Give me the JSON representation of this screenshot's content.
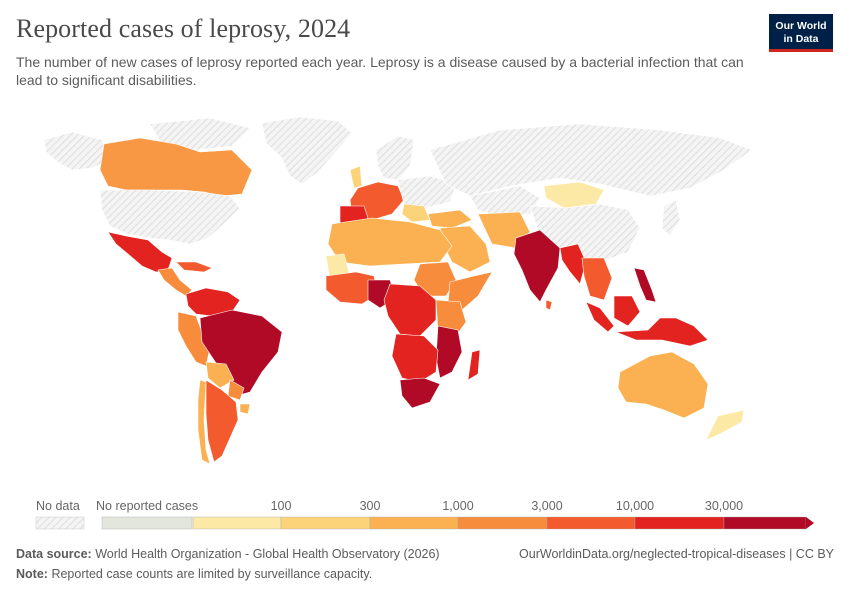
{
  "title": "Reported cases of leprosy, 2024",
  "subtitle": "The number of new cases of leprosy reported each year. Leprosy is a disease caused by a bacterial infection that can lead to significant disabilities.",
  "logo": {
    "line1": "Our World",
    "line2": "in Data"
  },
  "legend": {
    "no_data_label": "No data",
    "no_cases_label": "No reported cases",
    "ticks": [
      "100",
      "300",
      "1,000",
      "3,000",
      "10,000",
      "30,000"
    ],
    "colors": {
      "no_data": "#e8e8e8",
      "no_cases": "#e2e6dc",
      "bins": [
        "#fde9a6",
        "#fdd37a",
        "#fbb152",
        "#f88c3d",
        "#f35a2e",
        "#e2231f",
        "#b00a26"
      ]
    }
  },
  "footer": {
    "source_label": "Data source:",
    "source_text": "World Health Organization - Global Health Observatory (2026)",
    "url_text": "OurWorldinData.org/neglected-tropical-diseases | CC BY",
    "note_label": "Note:",
    "note_text": "Reported case counts are limited by surveillance capacity."
  }
}
